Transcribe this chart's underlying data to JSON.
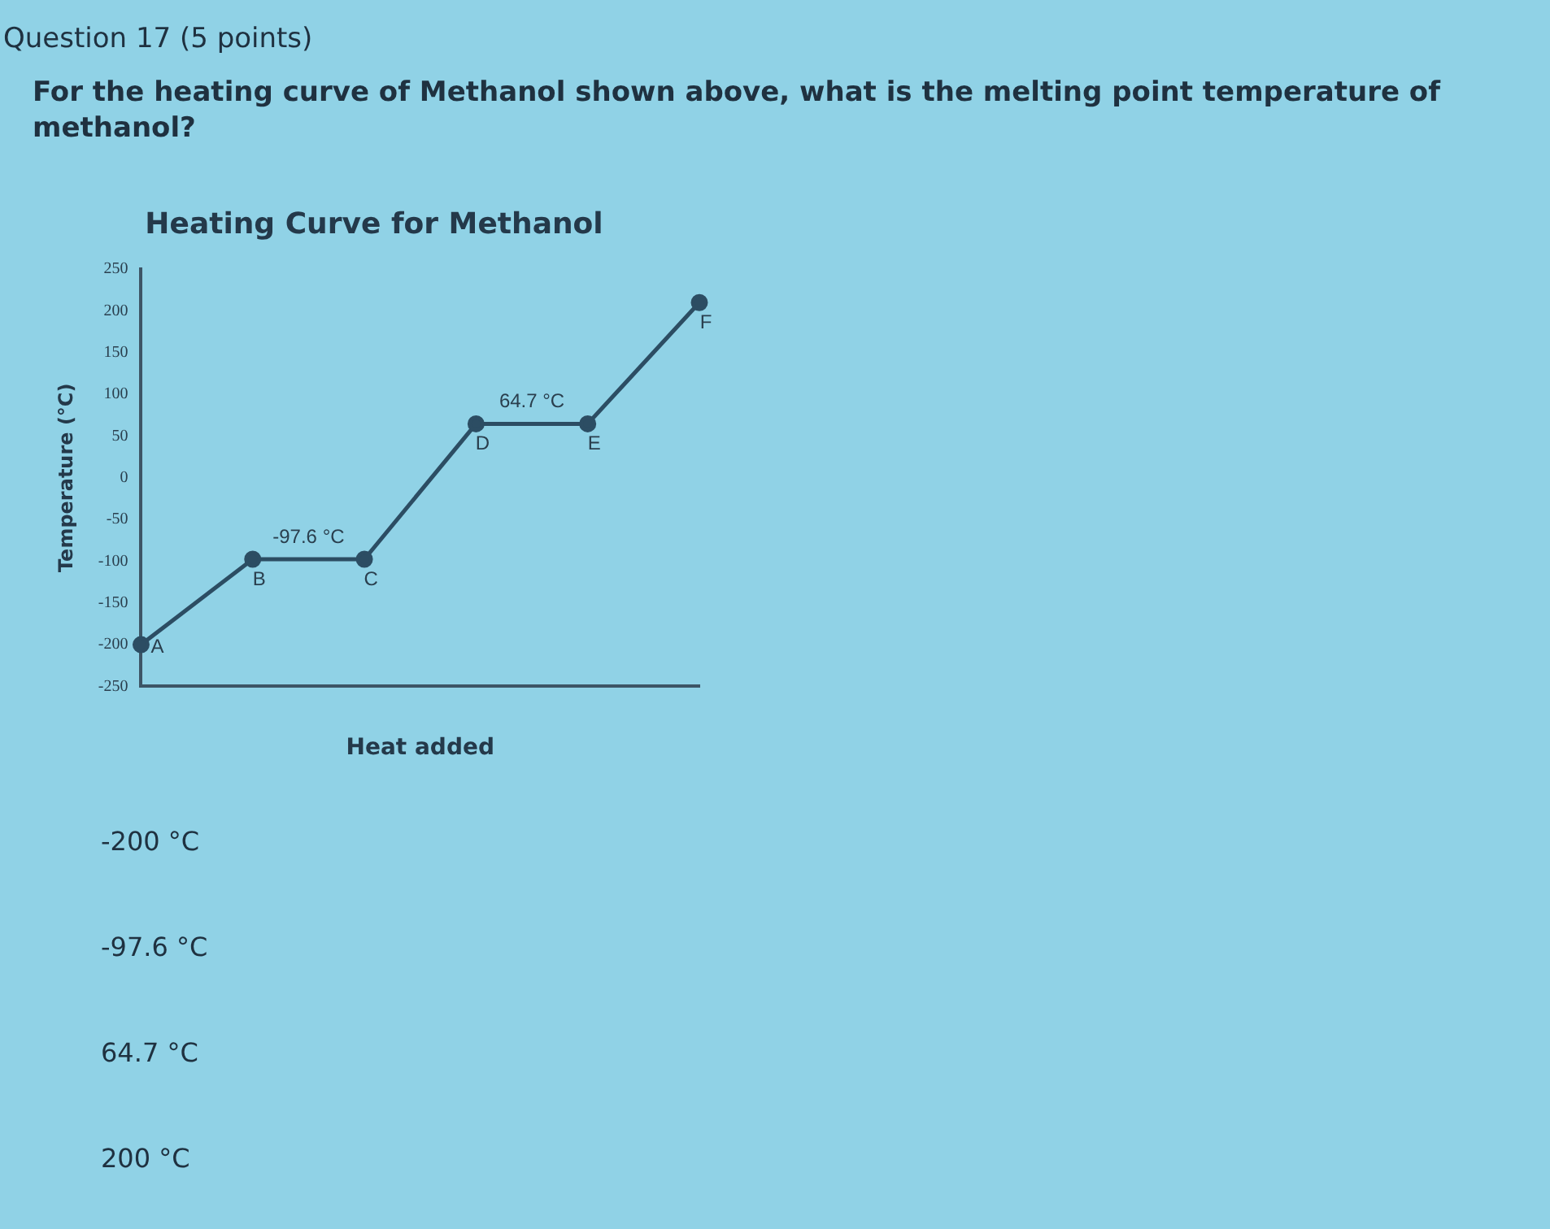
{
  "chart_data": {
    "type": "line",
    "title": "Heating Curve for Methanol",
    "xlabel": "Heat added",
    "ylabel": "Temperature (°C)",
    "categories": [
      null,
      null,
      null,
      null,
      null,
      null
    ],
    "series": [
      {
        "color": "#2c4d63",
        "values": [
          -200,
          -97.6,
          -97.6,
          64.7,
          64.7,
          210
        ],
        "value_labels": [
          "A",
          "B",
          "C",
          "D",
          "E",
          "F"
        ]
      }
    ],
    "ylim": [
      -250,
      250
    ],
    "yticks": [
      -250,
      -200,
      -150,
      -100,
      -50,
      0,
      50,
      100,
      150,
      200,
      250
    ],
    "grid": false,
    "legend": false,
    "marker": "circle",
    "line_style": "solid",
    "annotations": [
      "Question 17 (5 points)",
      "For the heating curve of Methanol shown above, what is the melting point temperature of methanol?",
      "-200 °C",
      "-97.6 °C",
      "64.7 °C",
      "200 °C",
      {
        "text": "-97.6 °C",
        "y": -97.6
      },
      {
        "text": "64.7 °C",
        "y": 64.7
      }
    ]
  }
}
